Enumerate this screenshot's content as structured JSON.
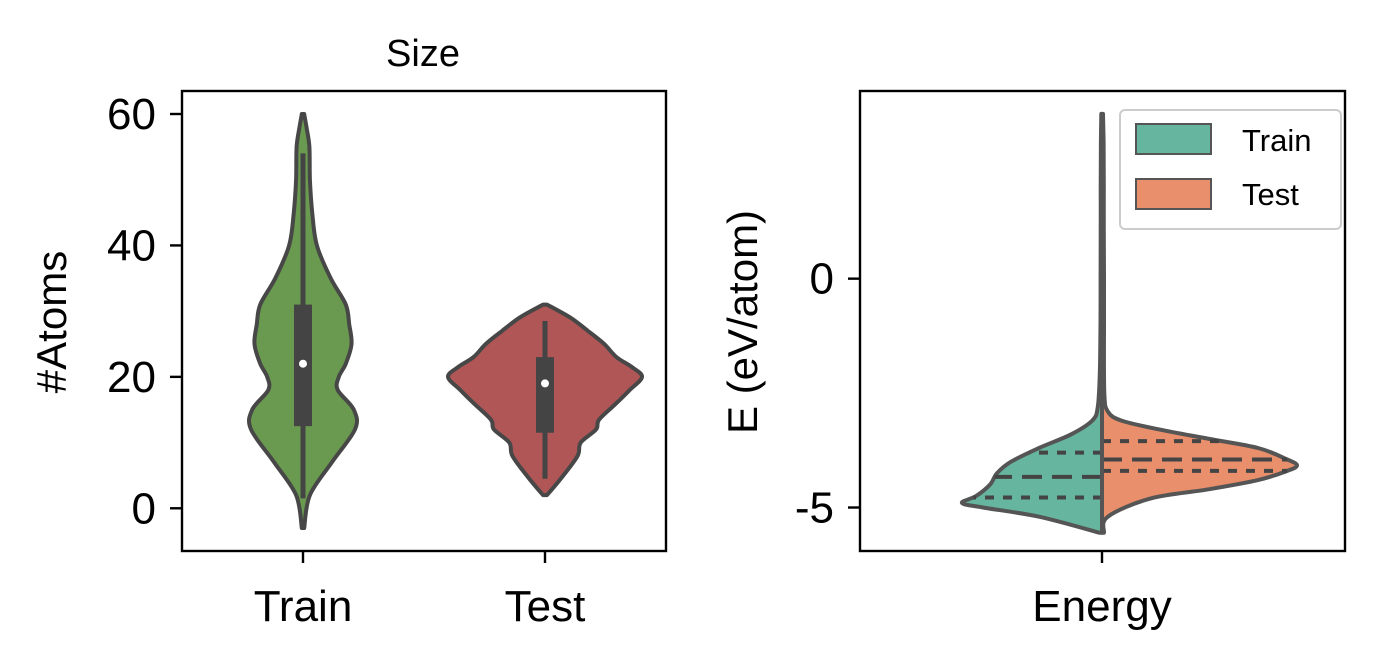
{
  "chart_data": [
    {
      "type": "violin",
      "title": "Size",
      "ylabel": "#Atoms",
      "xlabel": "",
      "ylim": [
        -6.5,
        63.5
      ],
      "yticks": [
        0,
        20,
        40,
        60
      ],
      "ytick_labels": [
        "0",
        "20",
        "40",
        "60"
      ],
      "categories": [
        "Train",
        "Test"
      ],
      "colors": [
        "#6a9a4f",
        "#b05656"
      ],
      "series": [
        {
          "category": "Train",
          "min": -3,
          "max": 60,
          "whisker_low": 1.5,
          "whisker_high": 54,
          "q1": 12.5,
          "median": 22,
          "q3": 31,
          "density": [
            [
              -3,
              0.01
            ],
            [
              2,
              0.06
            ],
            [
              7,
              0.25
            ],
            [
              12,
              0.45
            ],
            [
              15,
              0.44
            ],
            [
              18,
              0.3
            ],
            [
              20,
              0.31
            ],
            [
              22,
              0.37
            ],
            [
              25,
              0.42
            ],
            [
              28,
              0.4
            ],
            [
              31,
              0.37
            ],
            [
              35,
              0.24
            ],
            [
              40,
              0.12
            ],
            [
              45,
              0.08
            ],
            [
              50,
              0.06
            ],
            [
              55,
              0.055
            ],
            [
              58,
              0.03
            ],
            [
              60,
              0.01
            ]
          ]
        },
        {
          "category": "Test",
          "min": 2,
          "max": 31,
          "whisker_low": 4.5,
          "whisker_high": 28.5,
          "q1": 11.5,
          "median": 19,
          "q3": 23,
          "density": [
            [
              2,
              0.02
            ],
            [
              5,
              0.18
            ],
            [
              8,
              0.32
            ],
            [
              10,
              0.35
            ],
            [
              12,
              0.5
            ],
            [
              13.5,
              0.53
            ],
            [
              16,
              0.7
            ],
            [
              18,
              0.83
            ],
            [
              20,
              0.95
            ],
            [
              21.5,
              0.85
            ],
            [
              23,
              0.7
            ],
            [
              25,
              0.58
            ],
            [
              27,
              0.42
            ],
            [
              29,
              0.25
            ],
            [
              31,
              0.02
            ]
          ]
        }
      ]
    },
    {
      "type": "violin-split",
      "title": "",
      "ylabel": "E (eV/atom)",
      "xlabel": "",
      "ylim": [
        -5.95,
        4.1
      ],
      "yticks": [
        -5,
        0
      ],
      "ytick_labels": [
        "-5",
        "0"
      ],
      "categories": [
        "Energy"
      ],
      "legend": {
        "position": "top-right",
        "entries": [
          "Train",
          "Test"
        ]
      },
      "series": [
        {
          "name": "Train",
          "side": "left",
          "color": "#66b59f",
          "min": -5.55,
          "max": 3.6,
          "quartiles": [
            -4.78,
            -4.33,
            -3.8
          ],
          "density": [
            [
              -5.55,
              0.02
            ],
            [
              -5.2,
              0.45
            ],
            [
              -5.0,
              0.85
            ],
            [
              -4.9,
              1.0
            ],
            [
              -4.75,
              0.9
            ],
            [
              -4.5,
              0.8
            ],
            [
              -4.25,
              0.75
            ],
            [
              -4.0,
              0.65
            ],
            [
              -3.7,
              0.45
            ],
            [
              -3.4,
              0.22
            ],
            [
              -3.1,
              0.07
            ],
            [
              -2.8,
              0.03
            ],
            [
              -2.0,
              0.015
            ],
            [
              -1.0,
              0.011
            ],
            [
              0,
              0.01
            ],
            [
              1.0,
              0.009
            ],
            [
              2.0,
              0.009
            ],
            [
              3.0,
              0.008
            ],
            [
              3.6,
              0.005
            ]
          ]
        },
        {
          "name": "Test",
          "side": "right",
          "color": "#e98f6b",
          "min": -5.55,
          "max": 3.6,
          "quartiles": [
            -4.2,
            -3.95,
            -3.55
          ],
          "density": [
            [
              -5.55,
              0.01
            ],
            [
              -5.2,
              0.03
            ],
            [
              -4.8,
              0.25
            ],
            [
              -4.6,
              0.55
            ],
            [
              -4.4,
              0.8
            ],
            [
              -4.2,
              0.95
            ],
            [
              -4.08,
              1.0
            ],
            [
              -3.95,
              0.95
            ],
            [
              -3.7,
              0.8
            ],
            [
              -3.5,
              0.55
            ],
            [
              -3.3,
              0.3
            ],
            [
              -3.1,
              0.1
            ],
            [
              -2.9,
              0.03
            ],
            [
              -2.5,
              0.012
            ],
            [
              -1.0,
              0.01
            ],
            [
              0,
              0.01
            ],
            [
              1.0,
              0.009
            ],
            [
              2.0,
              0.009
            ],
            [
              3.0,
              0.008
            ],
            [
              3.6,
              0.005
            ]
          ]
        }
      ]
    }
  ]
}
